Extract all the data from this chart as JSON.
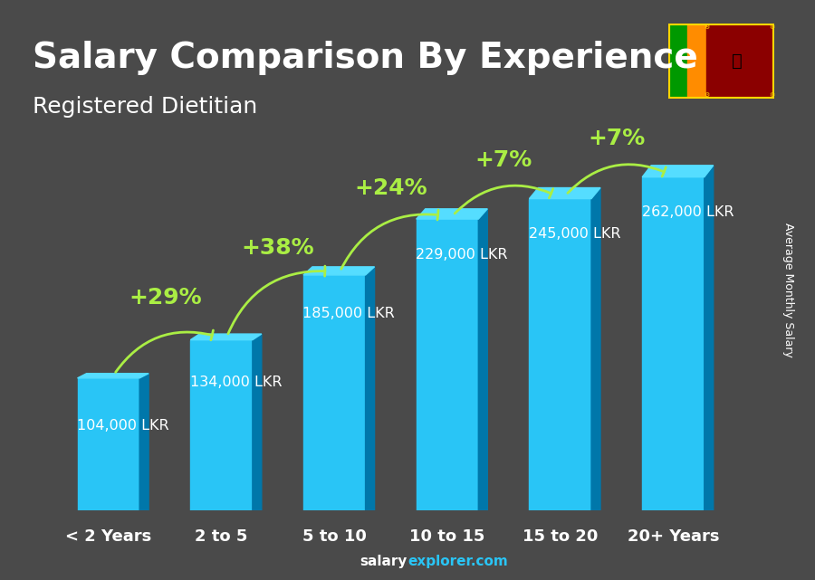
{
  "title": "Salary Comparison By Experience",
  "subtitle": "Registered Dietitian",
  "categories": [
    "< 2 Years",
    "2 to 5",
    "5 to 10",
    "10 to 15",
    "15 to 20",
    "20+ Years"
  ],
  "values": [
    104000,
    134000,
    185000,
    229000,
    245000,
    262000
  ],
  "labels": [
    "104,000 LKR",
    "134,000 LKR",
    "185,000 LKR",
    "229,000 LKR",
    "245,000 LKR",
    "262,000 LKR"
  ],
  "pct_changes": [
    "+29%",
    "+38%",
    "+24%",
    "+7%",
    "+7%"
  ],
  "bar_color_top": "#29c5f6",
  "bar_color_mid": "#00aadd",
  "bar_color_side": "#0077aa",
  "bg_color": "#4a4a4a",
  "text_color_white": "#ffffff",
  "text_color_green": "#aaee44",
  "arrow_color": "#aaee44",
  "title_fontsize": 28,
  "subtitle_fontsize": 18,
  "label_fontsize": 12,
  "cat_fontsize": 13,
  "pct_fontsize": 18,
  "ylabel": "Average Monthly Salary",
  "footer": "salaryexplorer.com",
  "ylim_max": 310000,
  "bar_width": 0.55
}
